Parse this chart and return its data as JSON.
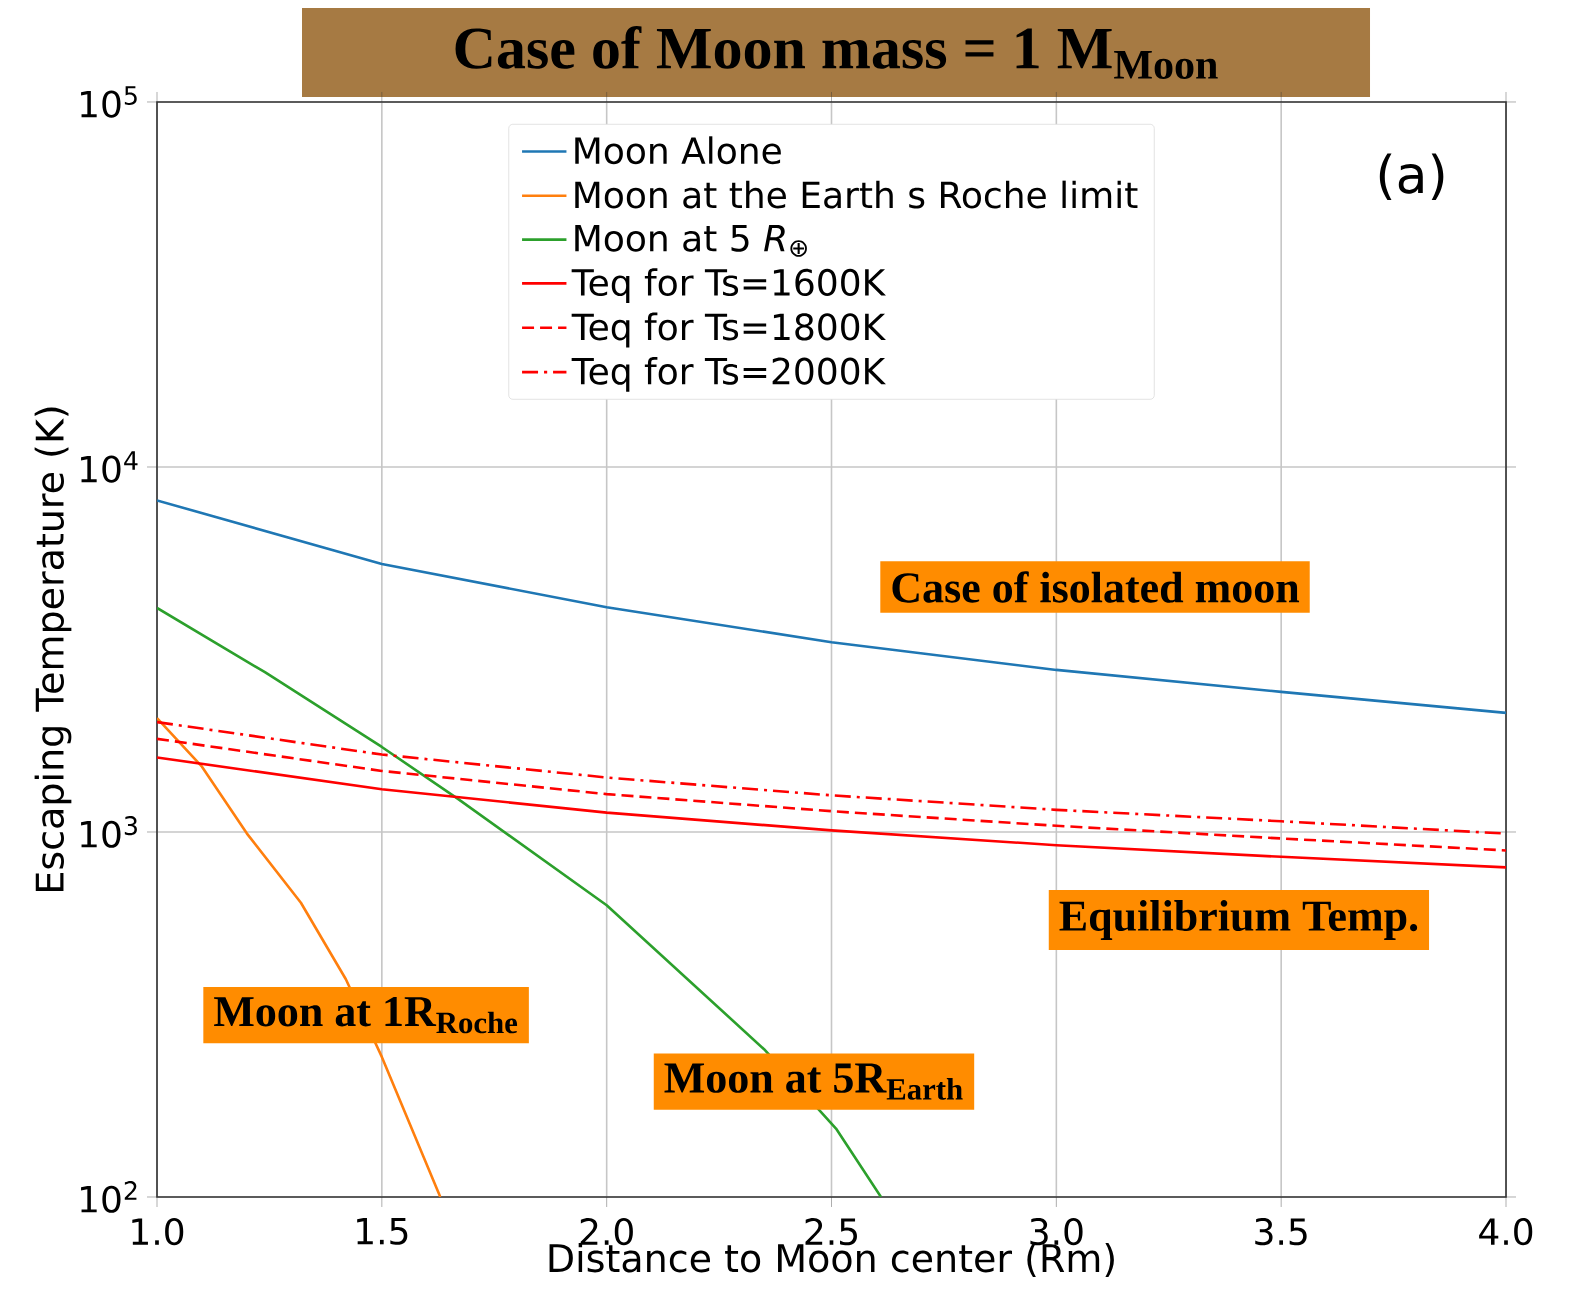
{
  "chart_data": {
    "type": "line",
    "title": "Case of Moon mass = 1 M$_{Moon}$",
    "xlabel": "Distance to Moon center (Rm)",
    "ylabel": "Escaping Temperature (K)",
    "log": "y",
    "grid": true,
    "legend": "top",
    "xlim": [
      1.0,
      4.0
    ],
    "ylim": [
      100,
      100000
    ],
    "xticks": [
      {
        "value": 1.0,
        "label": "1.0"
      },
      {
        "value": 1.5,
        "label": "1.5"
      },
      {
        "value": 2.0,
        "label": "2.0"
      },
      {
        "value": 2.5,
        "label": "2.5"
      },
      {
        "value": 3.0,
        "label": "3.0"
      },
      {
        "value": 3.5,
        "label": "3.5"
      },
      {
        "value": 4.0,
        "label": "4.0"
      }
    ],
    "yticks": [
      {
        "value": 100,
        "label": "10$^{2}$"
      },
      {
        "value": 1000,
        "label": "10$^{3}$"
      },
      {
        "value": 10000,
        "label": "10$^{4}$"
      },
      {
        "value": 100000,
        "label": "10$^{5}$"
      }
    ],
    "series": [
      {
        "name": "Moon Alone",
        "color": "#1f77b4",
        "line_style": "solid",
        "x": [
          1.0,
          1.5,
          2.0,
          2.5,
          3.0,
          3.5,
          4.0
        ],
        "values": [
          8100,
          5420,
          4130,
          3310,
          2780,
          2420,
          2120
        ]
      },
      {
        "name": "Moon at the Earth s Roche limit",
        "color": "#ff7f0e",
        "line_style": "solid",
        "x": [
          1.0,
          1.1,
          1.2,
          1.32,
          1.42,
          1.5,
          1.63
        ],
        "values": [
          2050,
          1510,
          990,
          640,
          395,
          242,
          100
        ]
      },
      {
        "name": "Moon at 5 *R*$_{⊕}$",
        "color": "#2ca02c",
        "line_style": "solid",
        "x": [
          1.0,
          1.24,
          1.5,
          1.67,
          2.0,
          2.35,
          2.51,
          2.61
        ],
        "values": [
          4110,
          2740,
          1710,
          1230,
          630,
          254,
          154,
          100
        ]
      },
      {
        "name": "Teq for Ts=1600K",
        "color": "#ff0000",
        "line_style": "solid",
        "x": [
          1.0,
          1.5,
          2.0,
          2.5,
          3.0,
          3.5,
          4.0
        ],
        "values": [
          1600,
          1310,
          1130,
          1010,
          920,
          855,
          800
        ]
      },
      {
        "name": "Teq for Ts=1800K",
        "color": "#ff0000",
        "line_style": "dashed",
        "x": [
          1.0,
          1.5,
          2.0,
          2.5,
          3.0,
          3.5,
          4.0
        ],
        "values": [
          1800,
          1470,
          1270,
          1140,
          1040,
          960,
          890
        ]
      },
      {
        "name": "Teq for Ts=2000K",
        "color": "#ff0000",
        "line_style": "dashdot",
        "x": [
          1.0,
          1.5,
          2.0,
          2.5,
          3.0,
          3.5,
          4.0
        ],
        "values": [
          2000,
          1630,
          1410,
          1260,
          1150,
          1070,
          990
        ]
      }
    ],
    "annotations": [
      "Case of isolated moon",
      "Equilibrium Temp.",
      "Moon at 1R$_{Roche}$",
      "Moon at 5R$_{Earth}$",
      "(a)"
    ]
  }
}
